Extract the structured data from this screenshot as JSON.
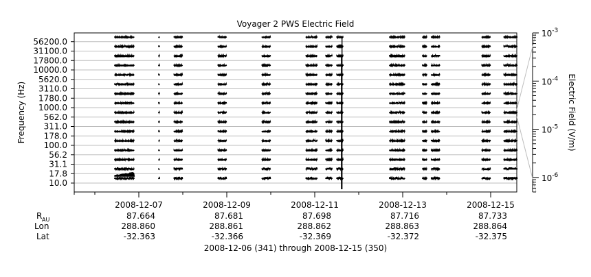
{
  "chart_data": {
    "type": "line",
    "title": "Voyager 2 PWS Electric Field",
    "ylabel": "Frequency (Hz)",
    "y2label": "Electric Field (V/m)",
    "channels": [
      "10.0",
      "17.8",
      "31.1",
      "56.2",
      "100.0",
      "178.0",
      "311.0",
      "562.0",
      "1000.0",
      "1780.0",
      "3110.0",
      "5620.0",
      "10000.0",
      "17800.0",
      "31100.0",
      "56200.0"
    ],
    "x_range": [
      "2008-12-06",
      "2008-12-16"
    ],
    "x_ticks": [
      {
        "date": "2008-12-07",
        "day": 1.0
      },
      {
        "date": "2008-12-09",
        "day": 3.0
      },
      {
        "date": "2008-12-11",
        "day": 5.0
      },
      {
        "date": "2008-12-13",
        "day": 7.0
      },
      {
        "date": "2008-12-15",
        "day": 9.0
      }
    ],
    "colorbar": {
      "scale": "log",
      "range": [
        5e-07,
        0.001
      ],
      "ticks": [
        "10^-6",
        "10^-5",
        "10^-4",
        "10^-3"
      ]
    },
    "data_intervals_day_of_range": [
      [
        0.45,
        0.9
      ],
      [
        1.45,
        1.47
      ],
      [
        1.8,
        2.0
      ],
      [
        2.8,
        3.0
      ],
      [
        3.8,
        4.0
      ],
      [
        4.8,
        5.05
      ],
      [
        5.25,
        5.4
      ],
      [
        5.5,
        5.65
      ],
      [
        6.7,
        7.05
      ],
      [
        7.45,
        7.55
      ],
      [
        7.65,
        7.85
      ],
      [
        8.8,
        9.0
      ],
      [
        9.3,
        9.6
      ]
    ],
    "burst": {
      "day": 5.62,
      "note": "vertical spike"
    },
    "ephemeris": {
      "row_labels": {
        "r_main": "R",
        "r_sub": "AU",
        "lon": "Lon",
        "lat": "Lat"
      },
      "columns": [
        {
          "r": "87.664",
          "lon": "288.860",
          "lat": "-32.363"
        },
        {
          "r": "87.681",
          "lon": "288.861",
          "lat": "-32.366"
        },
        {
          "r": "87.698",
          "lon": "288.862",
          "lat": "-32.369"
        },
        {
          "r": "87.716",
          "lon": "288.863",
          "lat": "-32.372"
        },
        {
          "r": "87.733",
          "lon": "288.864",
          "lat": "-32.375"
        }
      ]
    },
    "footer": "2008-12-06 (341) through 2008-12-15 (350)",
    "grid": true
  }
}
